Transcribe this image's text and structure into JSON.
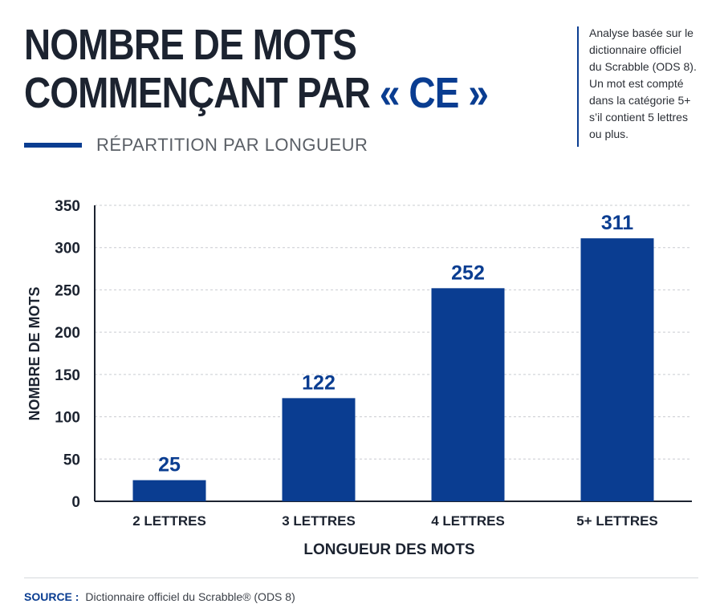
{
  "header": {
    "title_line1": "NOMBRE DE MOTS",
    "title_line2_prefix": "COMMENÇANT PAR ",
    "title_line2_accent": "« CE »",
    "subtitle": "RÉPARTITION PAR LONGUEUR"
  },
  "note": {
    "lines": [
      "Analyse basée sur le",
      "dictionnaire officiel",
      "du Scrabble (ODS 8).",
      "Un mot est compté",
      "dans la catégorie 5+",
      "s’il contient 5 lettres",
      "ou plus."
    ]
  },
  "footer": {
    "source_label": "SOURCE :",
    "source_text": "Dictionnaire officiel du Scrabble® (ODS 8)"
  },
  "colors": {
    "bar": "#0a3d91",
    "title": "#1c2330",
    "accent": "#0a3d91",
    "grid": "#c9ccd1",
    "axis": "#1c2330"
  },
  "chart_data": {
    "type": "bar",
    "title": "NOMBRE DE MOTS COMMENÇANT PAR « CE »",
    "subtitle": "RÉPARTITION PAR LONGUEUR",
    "categories": [
      "2 LETTRES",
      "3 LETTRES",
      "4 LETTRES",
      "5+ LETTRES"
    ],
    "values": [
      25,
      122,
      252,
      311
    ],
    "data_labels": [
      "25",
      "122",
      "252",
      "311"
    ],
    "xlabel": "LONGUEUR DES MOTS",
    "ylabel": "NOMBRE DE MOTS",
    "ylim": [
      0,
      350
    ],
    "yticks": [
      0,
      50,
      100,
      150,
      200,
      250,
      300,
      350
    ],
    "grid": true,
    "legend": "none"
  }
}
